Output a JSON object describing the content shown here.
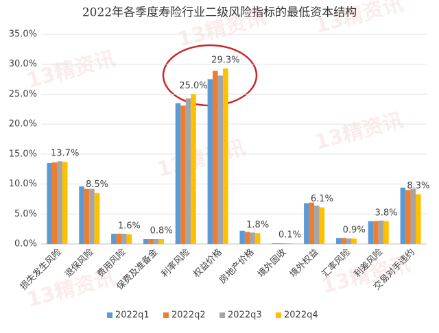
{
  "chart_data": {
    "type": "bar",
    "title": "2022年各季度寿险行业二级风险指标的最低资本结构",
    "watermark": "13精资讯",
    "categories": [
      "损失发生风险",
      "退保风险",
      "费用风险",
      "保费及准备金",
      "利率风险",
      "权益价格",
      "房地产价格",
      "境外固收",
      "境外权益",
      "汇率风险",
      "利差风险",
      "交易对手违约"
    ],
    "series": [
      {
        "name": "2022q1",
        "color": "#5b9bd5",
        "values": [
          13.5,
          9.6,
          1.7,
          0.8,
          23.5,
          27.5,
          2.2,
          0.1,
          6.8,
          1.0,
          3.8,
          9.4
        ]
      },
      {
        "name": "2022q2",
        "color": "#ed7d31",
        "values": [
          13.6,
          9.2,
          1.7,
          0.8,
          23.1,
          28.9,
          2.0,
          0.1,
          6.9,
          1.0,
          3.8,
          9.0
        ]
      },
      {
        "name": "2022q3",
        "color": "#a5a5a5",
        "values": [
          13.8,
          9.2,
          1.7,
          0.8,
          24.3,
          28.1,
          1.9,
          0.1,
          6.4,
          0.9,
          3.9,
          9.2
        ]
      },
      {
        "name": "2022q4",
        "color": "#ffc000",
        "values": [
          13.7,
          8.5,
          1.6,
          0.8,
          25.0,
          29.3,
          1.8,
          0.1,
          6.1,
          0.9,
          3.8,
          8.3
        ],
        "value_labels": [
          "13.7%",
          "8.5%",
          "1.6%",
          "0.8%",
          "25.0%",
          "29.3%",
          "1.8%",
          "0.1%",
          "6.1%",
          "0.9%",
          "3.8%",
          "8.3%"
        ]
      }
    ],
    "ylim": [
      0,
      35
    ],
    "yticks": [
      {
        "value": 0,
        "label": "0.0%"
      },
      {
        "value": 5,
        "label": "5.0%"
      },
      {
        "value": 10,
        "label": "10.0%"
      },
      {
        "value": 15,
        "label": "15.0%"
      },
      {
        "value": 20,
        "label": "20.0%"
      },
      {
        "value": 25,
        "label": "25.0%"
      },
      {
        "value": 30,
        "label": "30.0%"
      },
      {
        "value": 35,
        "label": "35.0%"
      }
    ],
    "legend": "bottom"
  }
}
